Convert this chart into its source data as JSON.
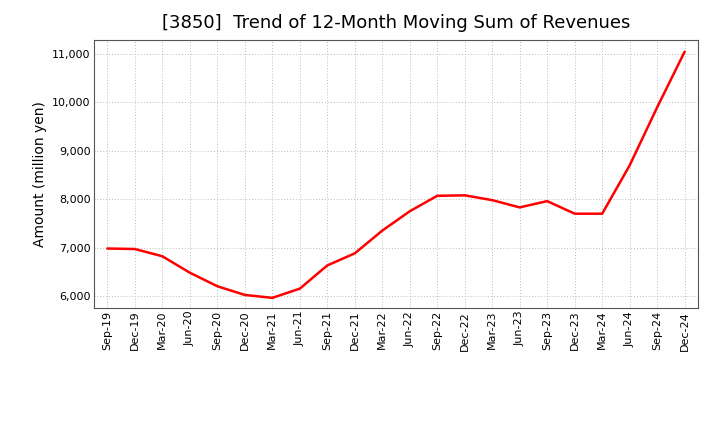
{
  "title": "[3850]  Trend of 12-Month Moving Sum of Revenues",
  "ylabel": "Amount (million yen)",
  "background_color": "#ffffff",
  "grid_color": "#bbbbbb",
  "line_color": "#ff0000",
  "labels": [
    "Sep-19",
    "Dec-19",
    "Mar-20",
    "Jun-20",
    "Sep-20",
    "Dec-20",
    "Mar-21",
    "Jun-21",
    "Sep-21",
    "Dec-21",
    "Mar-22",
    "Jun-22",
    "Sep-22",
    "Dec-22",
    "Mar-23",
    "Jun-23",
    "Sep-23",
    "Dec-23",
    "Mar-24",
    "Jun-24",
    "Sep-24",
    "Dec-24"
  ],
  "values": [
    6980,
    6970,
    6820,
    6480,
    6200,
    6020,
    5960,
    6150,
    6630,
    6880,
    7350,
    7750,
    8070,
    8080,
    7980,
    7830,
    7960,
    7700,
    7700,
    8700,
    9900,
    11050
  ],
  "ylim": [
    5750,
    11300
  ],
  "yticks": [
    6000,
    7000,
    8000,
    9000,
    10000,
    11000
  ],
  "title_fontsize": 13,
  "tick_fontsize": 8,
  "ylabel_fontsize": 10,
  "line_width": 1.8
}
